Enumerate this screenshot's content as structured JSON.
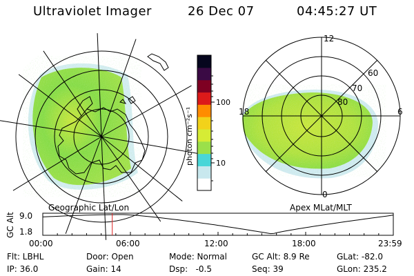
{
  "header": {
    "instrument": "Ultraviolet Imager",
    "date": "26 Dec 07",
    "time": "04:45:27 UT"
  },
  "colorbar": {
    "unit_label": "photon cm⁻²s⁻¹",
    "ticks": [
      "100",
      "10"
    ],
    "colors": [
      "#ffffff",
      "#c8e8ee",
      "#49d6d8",
      "#9be04a",
      "#d6ec35",
      "#f2d21a",
      "#ff8c00",
      "#dc1a1a",
      "#7e0022",
      "#3a0a44",
      "#06061e"
    ]
  },
  "left_map": {
    "label": "Geographic Lat/Lon",
    "emission_colors": [
      "#86dc46",
      "#c8e63c",
      "#b0e23e",
      "#9fe048"
    ]
  },
  "right_map": {
    "label": "Apex MLat/MLT",
    "lat_labels": [
      "80",
      "70",
      "60"
    ],
    "mlt_labels": {
      "top": "12",
      "bottom": "0",
      "left": "18",
      "right": "6"
    }
  },
  "altitude_plot": {
    "ylabel": "GC Alt",
    "ymax_label": "9.0",
    "ymin_label": "1.8",
    "x_ticks": [
      "00:00",
      "06:00",
      "12:00",
      "18:00",
      "23:59"
    ],
    "current_time": "04:45:27",
    "marker_color": "#dd2222"
  },
  "footer": {
    "col1": [
      "Flt: LBHL",
      "IP: 36.0"
    ],
    "col2": [
      "Door: Open",
      "Gain: 14"
    ],
    "col3": [
      "Mode: Normal",
      "Dsp:   -0.5"
    ],
    "col4": [
      "GC Alt: 8.9 Re",
      "Seq: 39"
    ],
    "col5": [
      "GLat: -82.0",
      "GLon: 235.2"
    ]
  }
}
